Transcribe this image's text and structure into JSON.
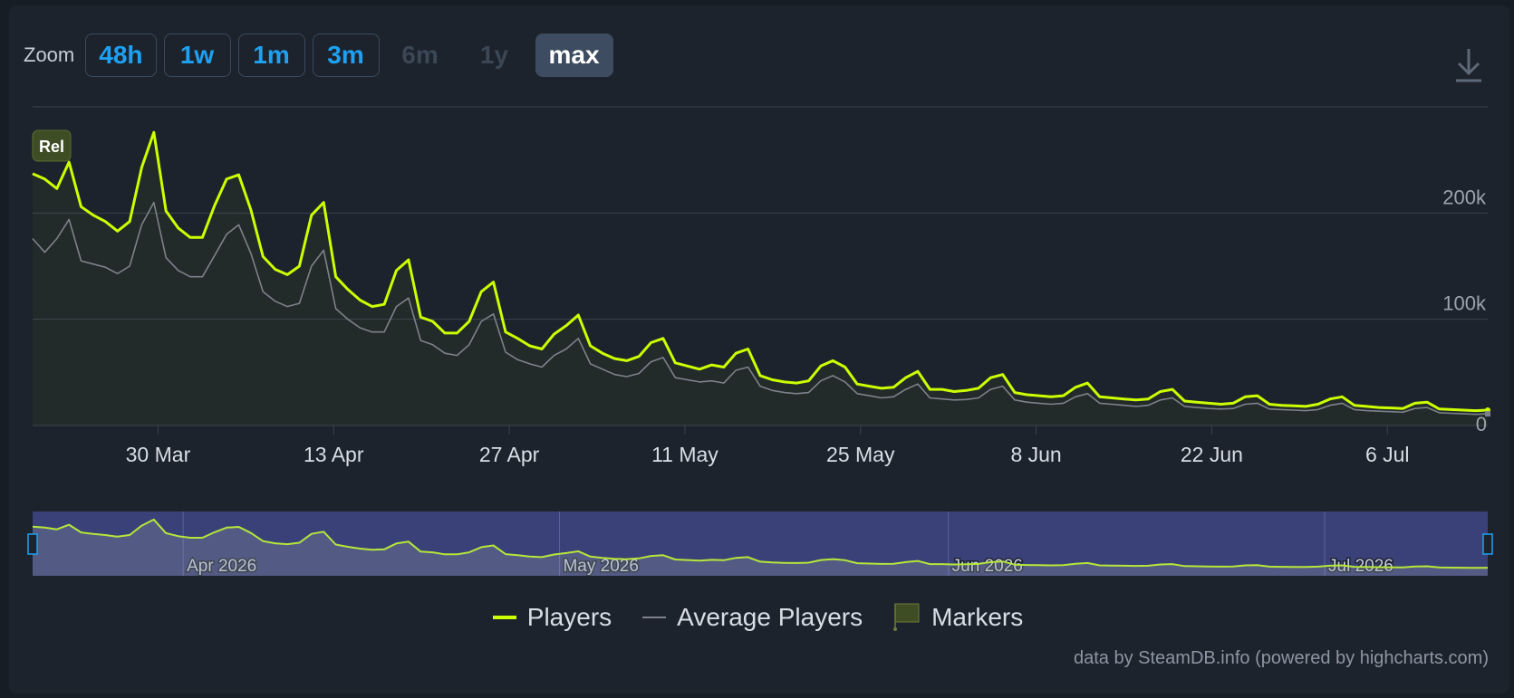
{
  "zoom": {
    "label": "Zoom",
    "buttons": [
      {
        "label": "48h",
        "state": "enabled"
      },
      {
        "label": "1w",
        "state": "enabled"
      },
      {
        "label": "1m",
        "state": "enabled"
      },
      {
        "label": "3m",
        "state": "enabled"
      },
      {
        "label": "6m",
        "state": "disabled"
      },
      {
        "label": "1y",
        "state": "disabled"
      },
      {
        "label": "max",
        "state": "active"
      }
    ]
  },
  "icons": {
    "download": "download-icon"
  },
  "colors": {
    "players": "#ccff00",
    "average": "#7d828a",
    "grid": "#3a4350",
    "navigator_bg": "#3a4178",
    "marker": "#3e4d24"
  },
  "chart_data": {
    "type": "line",
    "x_start": "2026-03-20",
    "x_end": "2026-07-14",
    "ylim": [
      0,
      300000
    ],
    "y_ticks": [
      "0",
      "100k",
      "200k"
    ],
    "x_ticks": [
      "30 Mar",
      "13 Apr",
      "27 Apr",
      "11 May",
      "25 May",
      "8 Jun",
      "22 Jun",
      "6 Jul"
    ],
    "navigator_ticks": [
      "Apr 2026",
      "May 2026",
      "Jun 2026",
      "Jul 2026"
    ],
    "marker": {
      "label": "Rel",
      "x": "2026-03-20"
    },
    "series": [
      {
        "name": "Players",
        "values": [
          237000,
          232000,
          223000,
          248000,
          206000,
          198000,
          192000,
          183000,
          192000,
          243000,
          276000,
          202000,
          186000,
          177000,
          177000,
          207000,
          232000,
          236000,
          203000,
          159000,
          147000,
          142000,
          150000,
          198000,
          210000,
          140000,
          128000,
          118000,
          112000,
          114000,
          146000,
          156000,
          102000,
          98000,
          87000,
          87000,
          98000,
          126000,
          135000,
          88000,
          82000,
          75000,
          72000,
          86000,
          94000,
          104000,
          75000,
          68000,
          63000,
          61000,
          65000,
          78000,
          82000,
          59000,
          56000,
          53000,
          57000,
          55000,
          68000,
          72000,
          47000,
          43000,
          41000,
          40000,
          42000,
          56000,
          61000,
          55000,
          39000,
          37000,
          35000,
          36000,
          45000,
          51000,
          34000,
          34000,
          32000,
          33000,
          35000,
          45000,
          48000,
          31000,
          29000,
          28000,
          27000,
          28000,
          36000,
          40000,
          27000,
          26000,
          25000,
          24000,
          25000,
          32000,
          34000,
          23000,
          22000,
          21000,
          20000,
          21000,
          27000,
          28000,
          20000,
          19000,
          18500,
          18000,
          20000,
          25000,
          27000,
          19000,
          18000,
          17000,
          16500,
          16000,
          21000,
          22000,
          15500,
          15000,
          14500,
          14000,
          14500
        ]
      },
      {
        "name": "Average Players",
        "values": [
          176000,
          163000,
          176000,
          194000,
          155000,
          152000,
          149000,
          143000,
          150000,
          189000,
          210000,
          158000,
          146000,
          140000,
          140000,
          160000,
          180000,
          189000,
          162000,
          126000,
          117000,
          112000,
          115000,
          150000,
          165000,
          110000,
          100000,
          92000,
          88000,
          88000,
          112000,
          120000,
          80000,
          76000,
          68000,
          66000,
          76000,
          98000,
          105000,
          69000,
          62000,
          58000,
          55000,
          66000,
          72000,
          82000,
          58000,
          53000,
          48000,
          46000,
          49000,
          60000,
          64000,
          45000,
          43000,
          41000,
          42000,
          40000,
          52000,
          55000,
          37000,
          33000,
          31000,
          30000,
          31000,
          42000,
          47000,
          41000,
          30000,
          28000,
          26000,
          27000,
          34000,
          39000,
          26000,
          25000,
          24000,
          24500,
          26000,
          34000,
          37000,
          24000,
          22000,
          21000,
          20000,
          21000,
          27000,
          30000,
          21000,
          20000,
          19000,
          18000,
          19000,
          24000,
          26000,
          18000,
          17000,
          16000,
          15500,
          16000,
          20000,
          21000,
          15500,
          15000,
          14500,
          14000,
          15000,
          19000,
          21000,
          15000,
          14000,
          13500,
          13000,
          12500,
          16000,
          17000,
          12000,
          11500,
          11000,
          10500,
          11000
        ]
      }
    ]
  },
  "legend": {
    "players": "Players",
    "average": "Average Players",
    "markers": "Markers"
  },
  "credit": "data by SteamDB.info (powered by highcharts.com)"
}
